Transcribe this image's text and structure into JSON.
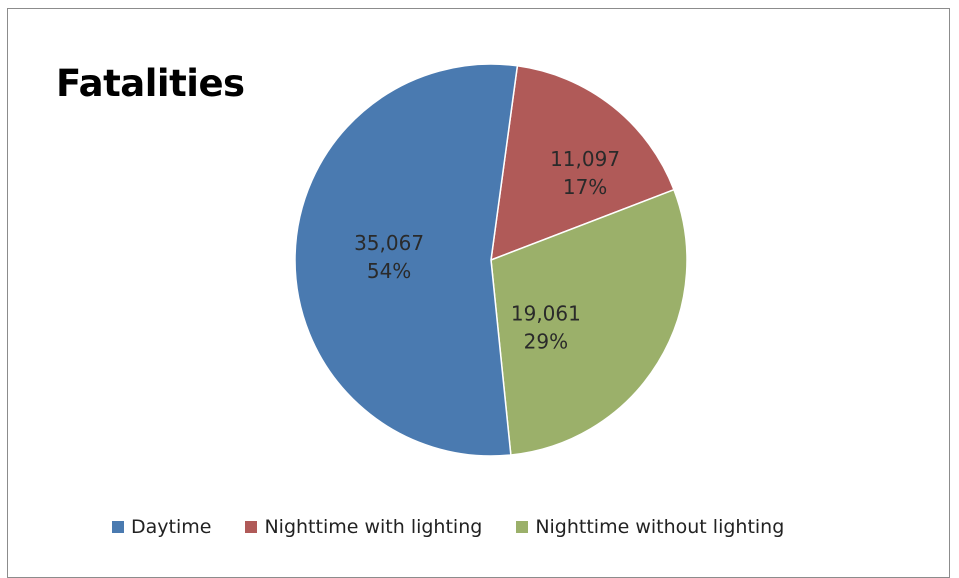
{
  "chart_data": {
    "type": "pie",
    "title": "Fatalities",
    "slices": [
      {
        "label": "Daytime",
        "value": 35067,
        "value_label": "35,067",
        "percent_label": "54%",
        "color": "#4a7ab0"
      },
      {
        "label": "Nighttime with lighting",
        "value": 11097,
        "value_label": "11,097",
        "percent_label": "17%",
        "color": "#b05a58"
      },
      {
        "label": "Nighttime without lighting",
        "value": 19061,
        "value_label": "19,061",
        "percent_label": "29%",
        "color": "#9bb06a"
      }
    ],
    "legend_position": "bottom"
  }
}
